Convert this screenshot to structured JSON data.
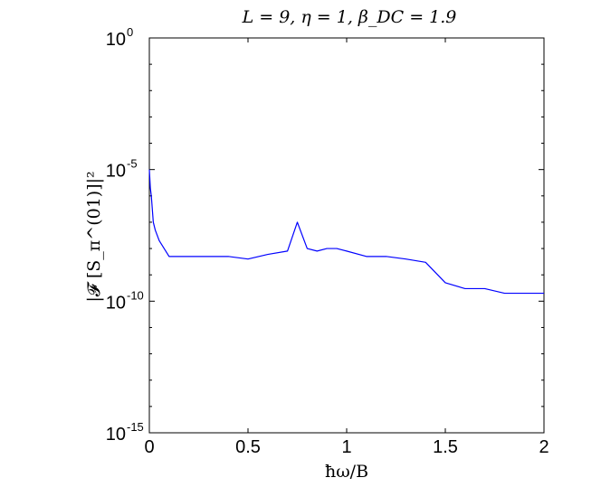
{
  "chart_data": {
    "type": "line",
    "title": "L = 9, η = 1, β_DC = 1.9",
    "xlabel": "ħω/B",
    "ylabel": "|𝓕 [S_π^(01)]|²",
    "xlim": [
      0,
      2
    ],
    "ylim": [
      1e-15,
      1
    ],
    "yscale": "log",
    "grid": false,
    "x_ticks": [
      "0",
      "0.5",
      "1",
      "1.5",
      "2"
    ],
    "y_ticks": [
      {
        "base": "10",
        "exp": "0"
      },
      {
        "base": "10",
        "exp": "-5"
      },
      {
        "base": "10",
        "exp": "-10"
      },
      {
        "base": "10",
        "exp": "-15"
      }
    ],
    "series": [
      {
        "color": "#0000ff",
        "x": [
          0,
          0.005,
          0.01,
          0.02,
          0.03,
          0.05,
          0.1,
          0.2,
          0.3,
          0.4,
          0.5,
          0.6,
          0.7,
          0.75,
          0.8,
          0.85,
          0.9,
          0.95,
          1.0,
          1.1,
          1.2,
          1.3,
          1.4,
          1.5,
          1.6,
          1.7,
          1.8,
          1.9,
          2.0
        ],
        "y": [
          1e-05,
          2e-06,
          1e-06,
          1e-07,
          5e-08,
          2e-08,
          5e-09,
          5e-09,
          5e-09,
          5e-09,
          4e-09,
          6e-09,
          8e-09,
          1e-07,
          1e-08,
          8e-09,
          1e-08,
          1e-08,
          8e-09,
          5e-09,
          5e-09,
          4e-09,
          3e-09,
          5e-10,
          3e-10,
          3e-10,
          2e-10,
          2e-10,
          2e-10
        ]
      }
    ]
  }
}
